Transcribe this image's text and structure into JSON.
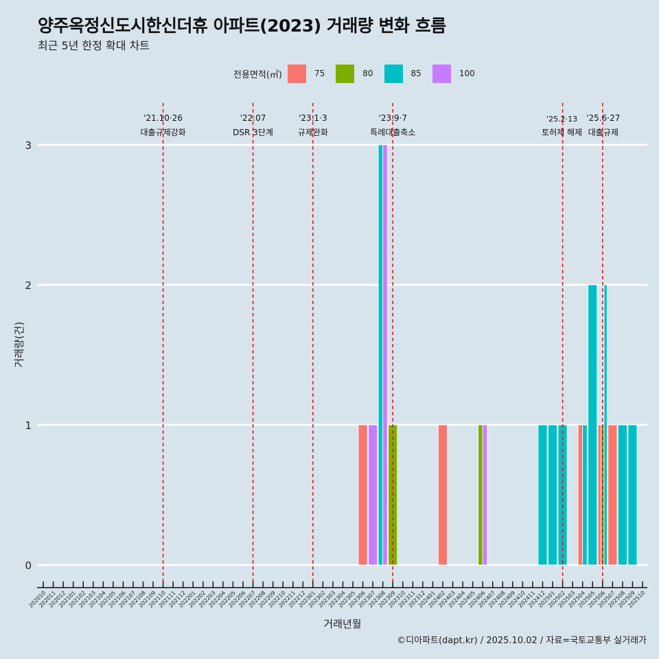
{
  "title": "양주옥정신도시한신더휴 아파트(2023) 거래량 변화 흐름",
  "subtitle": "최근 5년 한정 확대 차트",
  "footer": "©디아파트(dapt.kr) / 2025.10.02 / 자료=국토교통부 실거래가",
  "legend": {
    "title": "전용면적(㎡)",
    "items": [
      {
        "label": "75",
        "color": "#f8766d"
      },
      {
        "label": "80",
        "color": "#7cae00"
      },
      {
        "label": "85",
        "color": "#00bfc4"
      },
      {
        "label": "100",
        "color": "#c77cff"
      }
    ]
  },
  "chart_data": {
    "type": "bar",
    "title": "양주옥정신도시한신더휴 아파트(2023) 거래량 변화 흐름",
    "subtitle": "최근 5년 한정 확대 차트",
    "xlabel": "거래년월",
    "ylabel": "거래량(건)",
    "ylim": [
      0,
      3
    ],
    "yticks": [
      0,
      1,
      2,
      3
    ],
    "grid": "horizontal",
    "legend_position": "top",
    "bar_mode": "dodge",
    "categories": [
      "202010",
      "202011",
      "202012",
      "202101",
      "202102",
      "202103",
      "202104",
      "202105",
      "202106",
      "202107",
      "202108",
      "202109",
      "202110",
      "202111",
      "202112",
      "202201",
      "202202",
      "202203",
      "202204",
      "202205",
      "202206",
      "202207",
      "202208",
      "202209",
      "202210",
      "202211",
      "202212",
      "202301",
      "202302",
      "202303",
      "202304",
      "202305",
      "202306",
      "202307",
      "202308",
      "202309",
      "202310",
      "202311",
      "202312",
      "202401",
      "202402",
      "202403",
      "202404",
      "202405",
      "202406",
      "202407",
      "202408",
      "202409",
      "202410",
      "202411",
      "202412",
      "202501",
      "202502",
      "202503",
      "202504",
      "202505",
      "202506",
      "202507",
      "202508",
      "202509",
      "202510"
    ],
    "series": [
      {
        "name": "75",
        "color": "#f8766d",
        "points": [
          [
            "202306",
            1
          ],
          [
            "202402",
            1
          ],
          [
            "202504",
            1
          ],
          [
            "202506",
            1
          ],
          [
            "202507",
            1
          ]
        ]
      },
      {
        "name": "80",
        "color": "#7cae00",
        "points": [
          [
            "202309",
            1
          ],
          [
            "202406",
            1
          ],
          [
            "202506",
            1
          ]
        ]
      },
      {
        "name": "85",
        "color": "#00bfc4",
        "points": [
          [
            "202308",
            3
          ],
          [
            "202412",
            1
          ],
          [
            "202501",
            1
          ],
          [
            "202502",
            1
          ],
          [
            "202504",
            1
          ],
          [
            "202505",
            2
          ],
          [
            "202506",
            2
          ],
          [
            "202508",
            1
          ],
          [
            "202509",
            1
          ]
        ]
      },
      {
        "name": "100",
        "color": "#c77cff",
        "points": [
          [
            "202307",
            1
          ],
          [
            "202308",
            3
          ],
          [
            "202406",
            1
          ]
        ]
      }
    ],
    "annotations": [
      {
        "month": "202110",
        "date": "'21.10·26",
        "label": "대출규제강화"
      },
      {
        "month": "202207",
        "date": "'22.07",
        "label": "DSR 3단계"
      },
      {
        "month": "202301",
        "date": "'23.1·3",
        "label": "규제완화"
      },
      {
        "month": "202309",
        "date": "'23.9·7",
        "label": "특례대출축소"
      },
      {
        "month": "202502",
        "date": "'25.2·13",
        "label": "토허제 해제"
      },
      {
        "month": "202506",
        "date": "'25.6·27",
        "label": "대출규제"
      }
    ],
    "annotation_color": "#e41a1c"
  }
}
